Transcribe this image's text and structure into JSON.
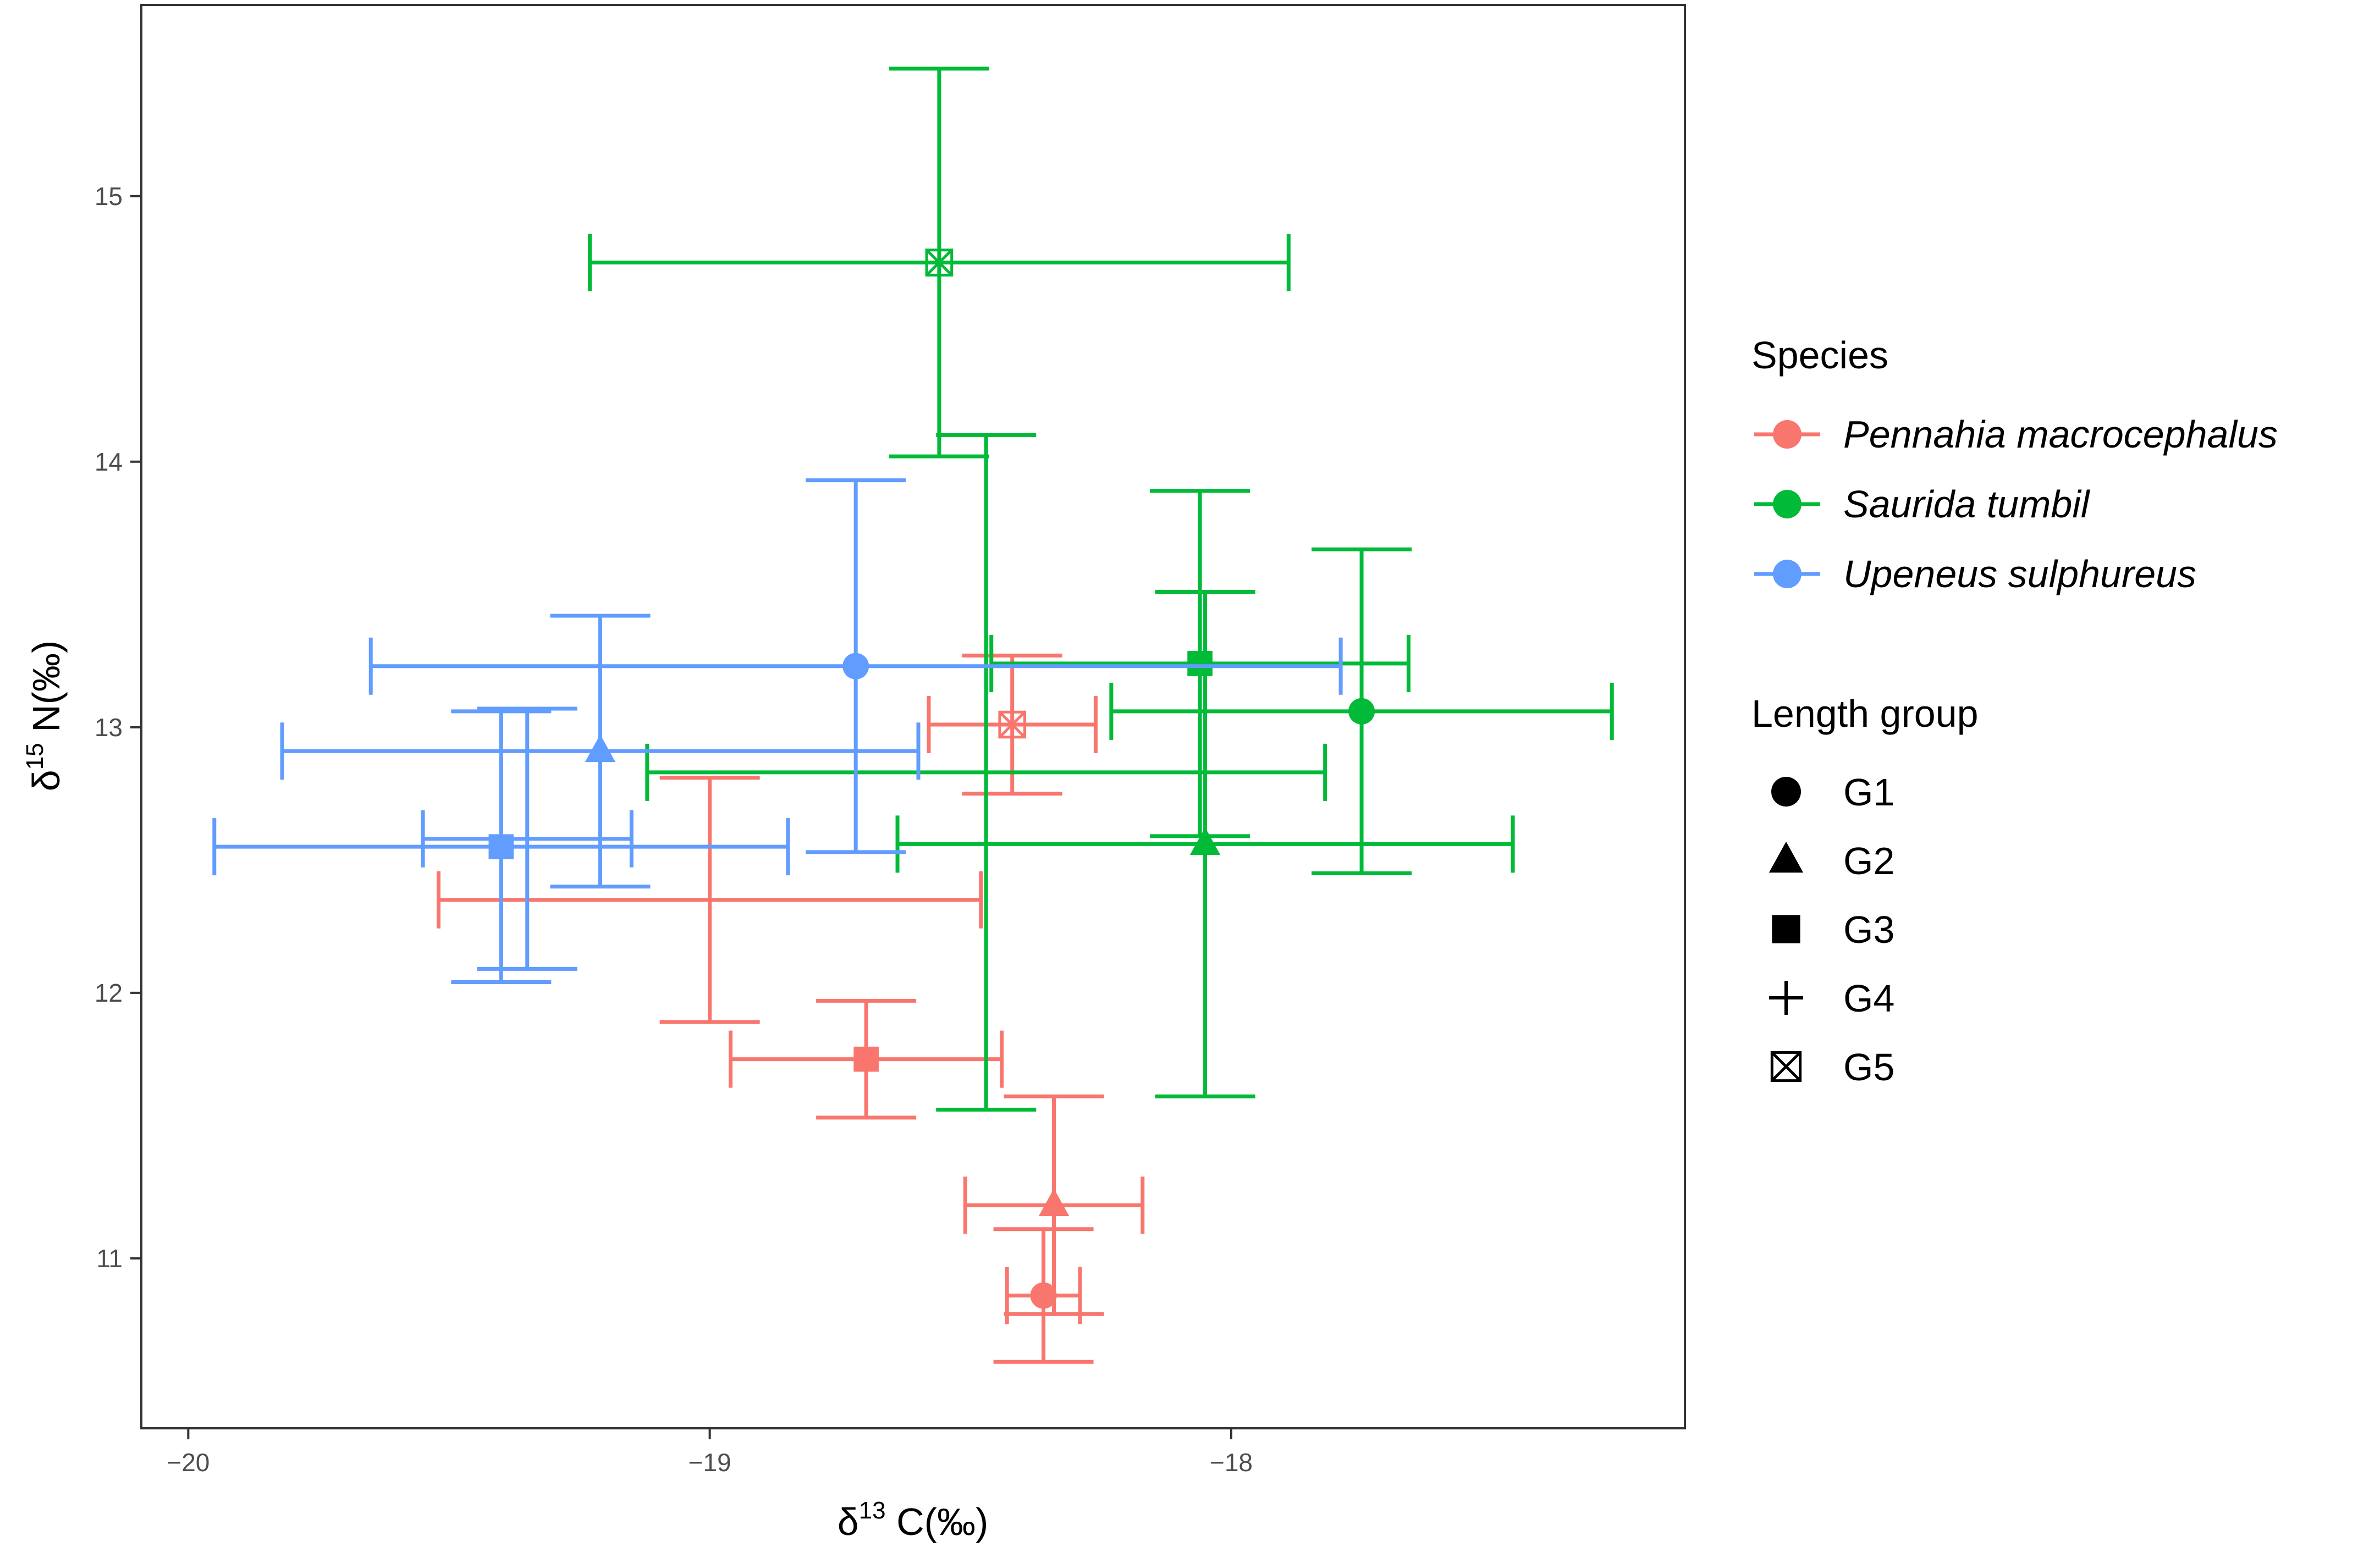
{
  "chart_data": {
    "type": "scatter",
    "subtype": "errorbar",
    "title": "",
    "xlabel": {
      "prefix": "δ",
      "sup": "13",
      "suffix": " C(‰)"
    },
    "ylabel": {
      "prefix": "δ",
      "sup": "15",
      "suffix": " N(‰)"
    },
    "xlim": [
      -20.09,
      -17.13
    ],
    "ylim": [
      10.36,
      15.72
    ],
    "xticks": [
      -20,
      -19,
      -18
    ],
    "xtick_labels": [
      "−20",
      "−19",
      "−18"
    ],
    "yticks": [
      11,
      12,
      13,
      14,
      15
    ],
    "ytick_labels": [
      "11",
      "12",
      "13",
      "14",
      "15"
    ],
    "grid": false,
    "legend_position": "right",
    "species_legend": {
      "title": "Species",
      "entries": [
        {
          "name": "Pennahia macrocephalus",
          "color": "#F8766D"
        },
        {
          "name": "Saurida tumbil",
          "color": "#00BA38"
        },
        {
          "name": "Upeneus sulphureus",
          "color": "#619CFF"
        }
      ]
    },
    "group_legend": {
      "title": "Length group",
      "entries": [
        {
          "name": "G1",
          "shape": "circle"
        },
        {
          "name": "G2",
          "shape": "triangle"
        },
        {
          "name": "G3",
          "shape": "square"
        },
        {
          "name": "G4",
          "shape": "plus"
        },
        {
          "name": "G5",
          "shape": "boxcross"
        }
      ]
    },
    "series": [
      {
        "name": "Pennahia macrocephalus",
        "color": "#F8766D",
        "points": [
          {
            "group": "G1",
            "x": -18.36,
            "y": 10.86,
            "xerr": 0.07,
            "yerr": 0.25
          },
          {
            "group": "G2",
            "x": -18.34,
            "y": 11.2,
            "xerr": 0.17,
            "yerr": 0.41
          },
          {
            "group": "G3",
            "x": -18.7,
            "y": 11.75,
            "xerr": 0.26,
            "yerr": 0.22
          },
          {
            "group": "G4",
            "x": -19.0,
            "y": 12.35,
            "xerr": 0.52,
            "yerr": 0.46
          },
          {
            "group": "G5",
            "x": -18.42,
            "y": 13.01,
            "xerr": 0.16,
            "yerr": 0.26
          }
        ]
      },
      {
        "name": "Saurida tumbil",
        "color": "#00BA38",
        "points": [
          {
            "group": "G1",
            "x": -17.75,
            "y": 13.06,
            "xerr": 0.48,
            "yerr": 0.61
          },
          {
            "group": "G2",
            "x": -18.05,
            "y": 12.56,
            "xerr": 0.59,
            "yerr": 0.95
          },
          {
            "group": "G3",
            "x": -18.06,
            "y": 13.24,
            "xerr": 0.4,
            "yerr": 0.65
          },
          {
            "group": "G4",
            "x": -18.47,
            "y": 12.83,
            "xerr": 0.65,
            "yerr": 1.27
          },
          {
            "group": "G5",
            "x": -18.56,
            "y": 14.75,
            "xerr": 0.67,
            "yerr": 0.73
          }
        ]
      },
      {
        "name": "Upeneus sulphureus",
        "color": "#619CFF",
        "points": [
          {
            "group": "G1",
            "x": -18.72,
            "y": 13.23,
            "xerr": 0.93,
            "yerr": 0.7
          },
          {
            "group": "G2",
            "x": -19.21,
            "y": 12.91,
            "xerr": 0.61,
            "yerr": 0.51
          },
          {
            "group": "G3",
            "x": -19.4,
            "y": 12.55,
            "xerr": 0.55,
            "yerr": 0.51
          },
          {
            "group": "G4",
            "x": -19.35,
            "y": 12.58,
            "xerr": 0.2,
            "yerr": 0.49
          }
        ]
      }
    ]
  }
}
